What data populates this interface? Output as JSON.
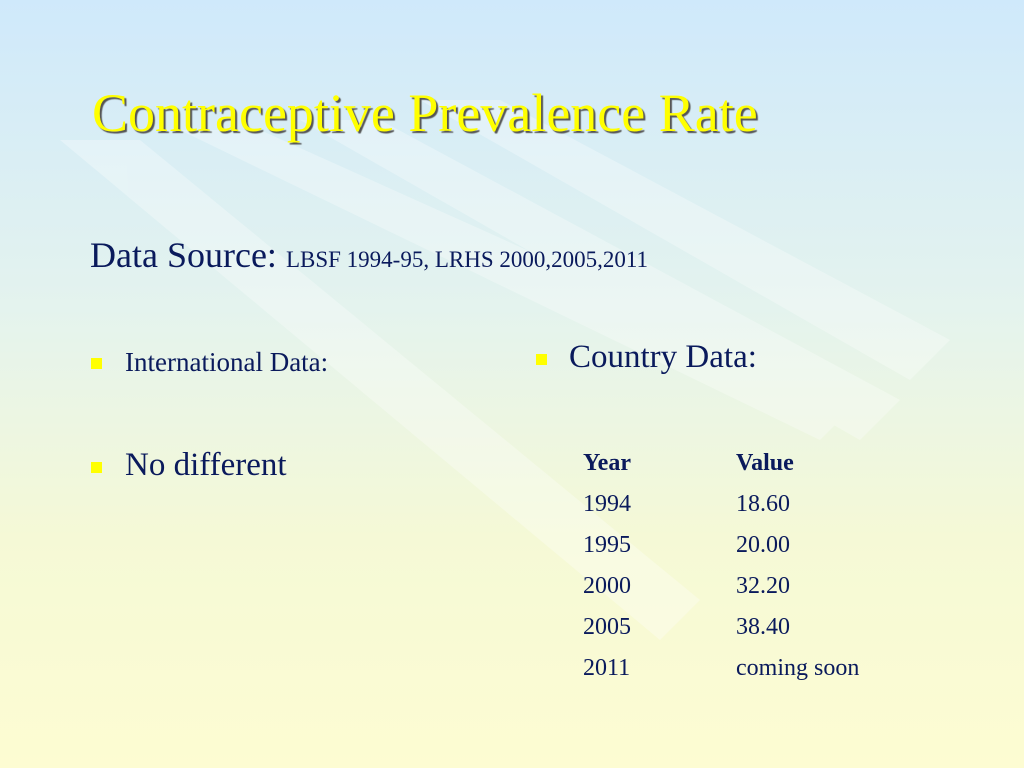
{
  "title": "Contraceptive Prevalence Rate",
  "source": {
    "label": "Data Source:",
    "text": "LBSF 1994-95, LRHS 2000,2005,2011"
  },
  "left_bullets": [
    "International Data:",
    "No different"
  ],
  "right": {
    "bullet": "Country Data:",
    "table": {
      "header": [
        "Year",
        "Value"
      ],
      "rows": [
        [
          "1994",
          "18.60"
        ],
        [
          "1995",
          "20.00"
        ],
        [
          "2000",
          "32.20"
        ],
        [
          "2005",
          "38.40"
        ],
        [
          "2011",
          "coming soon"
        ]
      ]
    }
  }
}
